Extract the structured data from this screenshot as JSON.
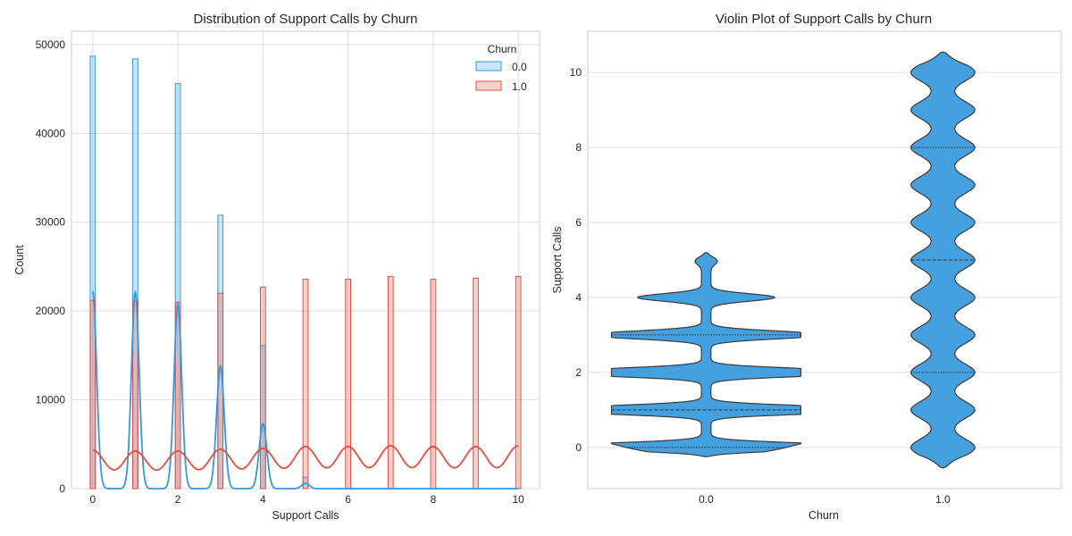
{
  "chart_data": [
    {
      "type": "bar",
      "title": "Distribution of Support Calls by Churn",
      "xlabel": "Support Calls",
      "ylabel": "Count",
      "xlim": [
        -0.5,
        10.5
      ],
      "ylim": [
        0,
        51500
      ],
      "xticks": [
        0,
        2,
        4,
        6,
        8,
        10
      ],
      "yticks": [
        0,
        10000,
        20000,
        30000,
        40000,
        50000
      ],
      "grid": true,
      "legend": {
        "title": "Churn",
        "placement": "top-right"
      },
      "x": [
        0,
        1,
        2,
        3,
        4,
        5,
        6,
        7,
        8,
        9,
        10
      ],
      "series": [
        {
          "name": "0.0",
          "color": "#3498db",
          "values": [
            48700,
            48400,
            45600,
            30800,
            16100,
            1300,
            0,
            0,
            0,
            0,
            0
          ],
          "kde": [
            22200,
            22100,
            20800,
            13800,
            7300,
            600,
            0,
            0,
            0,
            0,
            0
          ]
        },
        {
          "name": "1.0",
          "color": "#e74c3c",
          "values": [
            21200,
            21100,
            21000,
            22000,
            22700,
            23600,
            23600,
            23900,
            23600,
            23700,
            23900
          ],
          "kde": [
            4300,
            4200,
            4200,
            4400,
            4500,
            4700,
            4700,
            4800,
            4700,
            4700,
            4800
          ]
        }
      ]
    },
    {
      "type": "violin",
      "title": "Violin Plot of Support Calls by Churn",
      "xlabel": "Churn",
      "ylabel": "Support Calls",
      "categories": [
        "0.0",
        "1.0"
      ],
      "ylim": [
        -1.1,
        11.1
      ],
      "yticks": [
        0,
        2,
        4,
        6,
        8,
        10
      ],
      "grid": true,
      "color": "#3498db",
      "series": [
        {
          "name": "0.0",
          "range": [
            -0.25,
            5.2
          ],
          "peaks": [
            0,
            1,
            2,
            3,
            4,
            5
          ],
          "peak_widths": [
            0.79,
            0.77,
            0.69,
            0.49,
            0.27,
            0.04
          ],
          "quartiles": [
            0,
            1,
            3
          ]
        },
        {
          "name": "1.0",
          "range": [
            -0.55,
            10.55
          ],
          "peaks": [
            0,
            1,
            2,
            3,
            4,
            5,
            6,
            7,
            8,
            9,
            10
          ],
          "peak_widths": [
            0.1,
            0.1,
            0.1,
            0.1,
            0.1,
            0.1,
            0.1,
            0.1,
            0.1,
            0.1,
            0.1
          ],
          "quartiles": [
            2,
            5,
            8
          ]
        }
      ]
    }
  ]
}
